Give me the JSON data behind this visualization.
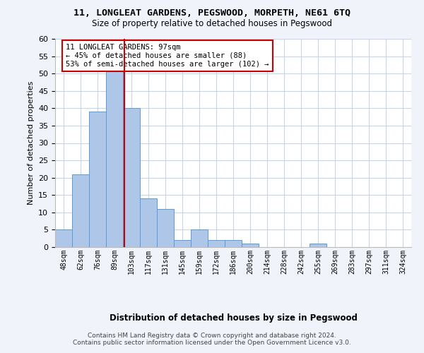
{
  "title": "11, LONGLEAT GARDENS, PEGSWOOD, MORPETH, NE61 6TQ",
  "subtitle": "Size of property relative to detached houses in Pegswood",
  "xlabel": "Distribution of detached houses by size in Pegswood",
  "ylabel": "Number of detached properties",
  "bin_labels": [
    "48sqm",
    "62sqm",
    "76sqm",
    "89sqm",
    "103sqm",
    "117sqm",
    "131sqm",
    "145sqm",
    "159sqm",
    "172sqm",
    "186sqm",
    "200sqm",
    "214sqm",
    "228sqm",
    "242sqm",
    "255sqm",
    "269sqm",
    "283sqm",
    "297sqm",
    "311sqm",
    "324sqm"
  ],
  "bar_heights": [
    5,
    21,
    39,
    51,
    40,
    14,
    11,
    2,
    5,
    2,
    2,
    1,
    0,
    0,
    0,
    1,
    0,
    0,
    0,
    0,
    0
  ],
  "bar_color": "#aec6e8",
  "bar_edge_color": "#5b9bd5",
  "vline_x_bin_idx": 3.57,
  "vline_color": "#cc0000",
  "ylim": [
    0,
    60
  ],
  "yticks": [
    0,
    5,
    10,
    15,
    20,
    25,
    30,
    35,
    40,
    45,
    50,
    55,
    60
  ],
  "annotation_text": "11 LONGLEAT GARDENS: 97sqm\n← 45% of detached houses are smaller (88)\n53% of semi-detached houses are larger (102) →",
  "annotation_box_color": "#cc0000",
  "footnote": "Contains HM Land Registry data © Crown copyright and database right 2024.\nContains public sector information licensed under the Open Government Licence v3.0.",
  "bg_color": "#f0f4fa",
  "plot_bg_color": "#ffffff",
  "grid_color": "#c8d4e8"
}
